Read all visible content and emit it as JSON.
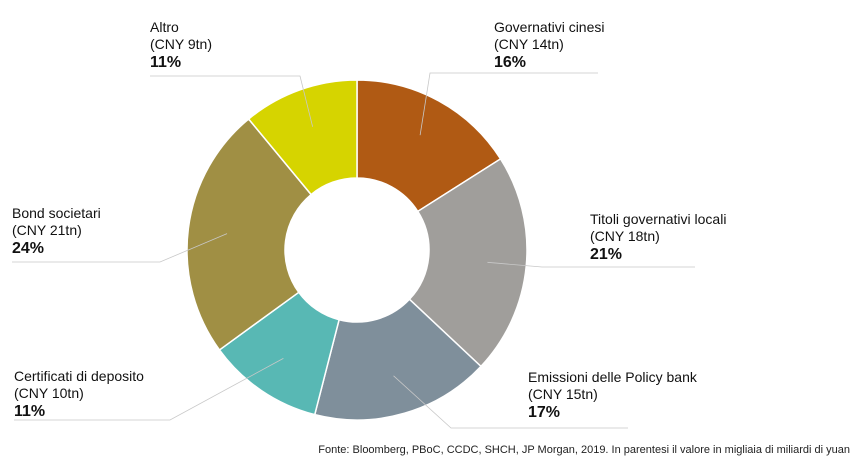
{
  "chart_data": {
    "type": "pie",
    "variant": "donut",
    "title": "",
    "slices": [
      {
        "name": "Governativi cinesi",
        "value_label": "(CNY 14tn)",
        "value": 14,
        "percent": 16,
        "percent_label": "16%",
        "color": "#b05a14"
      },
      {
        "name": "Titoli governativi locali",
        "value_label": "(CNY 18tn)",
        "value": 18,
        "percent": 21,
        "percent_label": "21%",
        "color": "#a09e9b"
      },
      {
        "name": "Emissioni delle Policy bank",
        "value_label": "(CNY 15tn)",
        "value": 15,
        "percent": 17,
        "percent_label": "17%",
        "color": "#7f8f9b"
      },
      {
        "name": "Certificati di deposito",
        "value_label": "(CNY 10tn)",
        "value": 10,
        "percent": 11,
        "percent_label": "11%",
        "color": "#58b8b4"
      },
      {
        "name": "Bond societari",
        "value_label": "(CNY 21tn)",
        "value": 21,
        "percent": 24,
        "percent_label": "24%",
        "color": "#a08f44"
      },
      {
        "name": "Altro",
        "value_label": "(CNY 9tn)",
        "value": 9,
        "percent": 11,
        "percent_label": "11%",
        "color": "#d6d400"
      }
    ],
    "source": "Fonte: Bloomberg, PBoC, CCDC, SHCH, JP Morgan, 2019. In parentesi il valore in migliaia di miliardi di yuan"
  }
}
